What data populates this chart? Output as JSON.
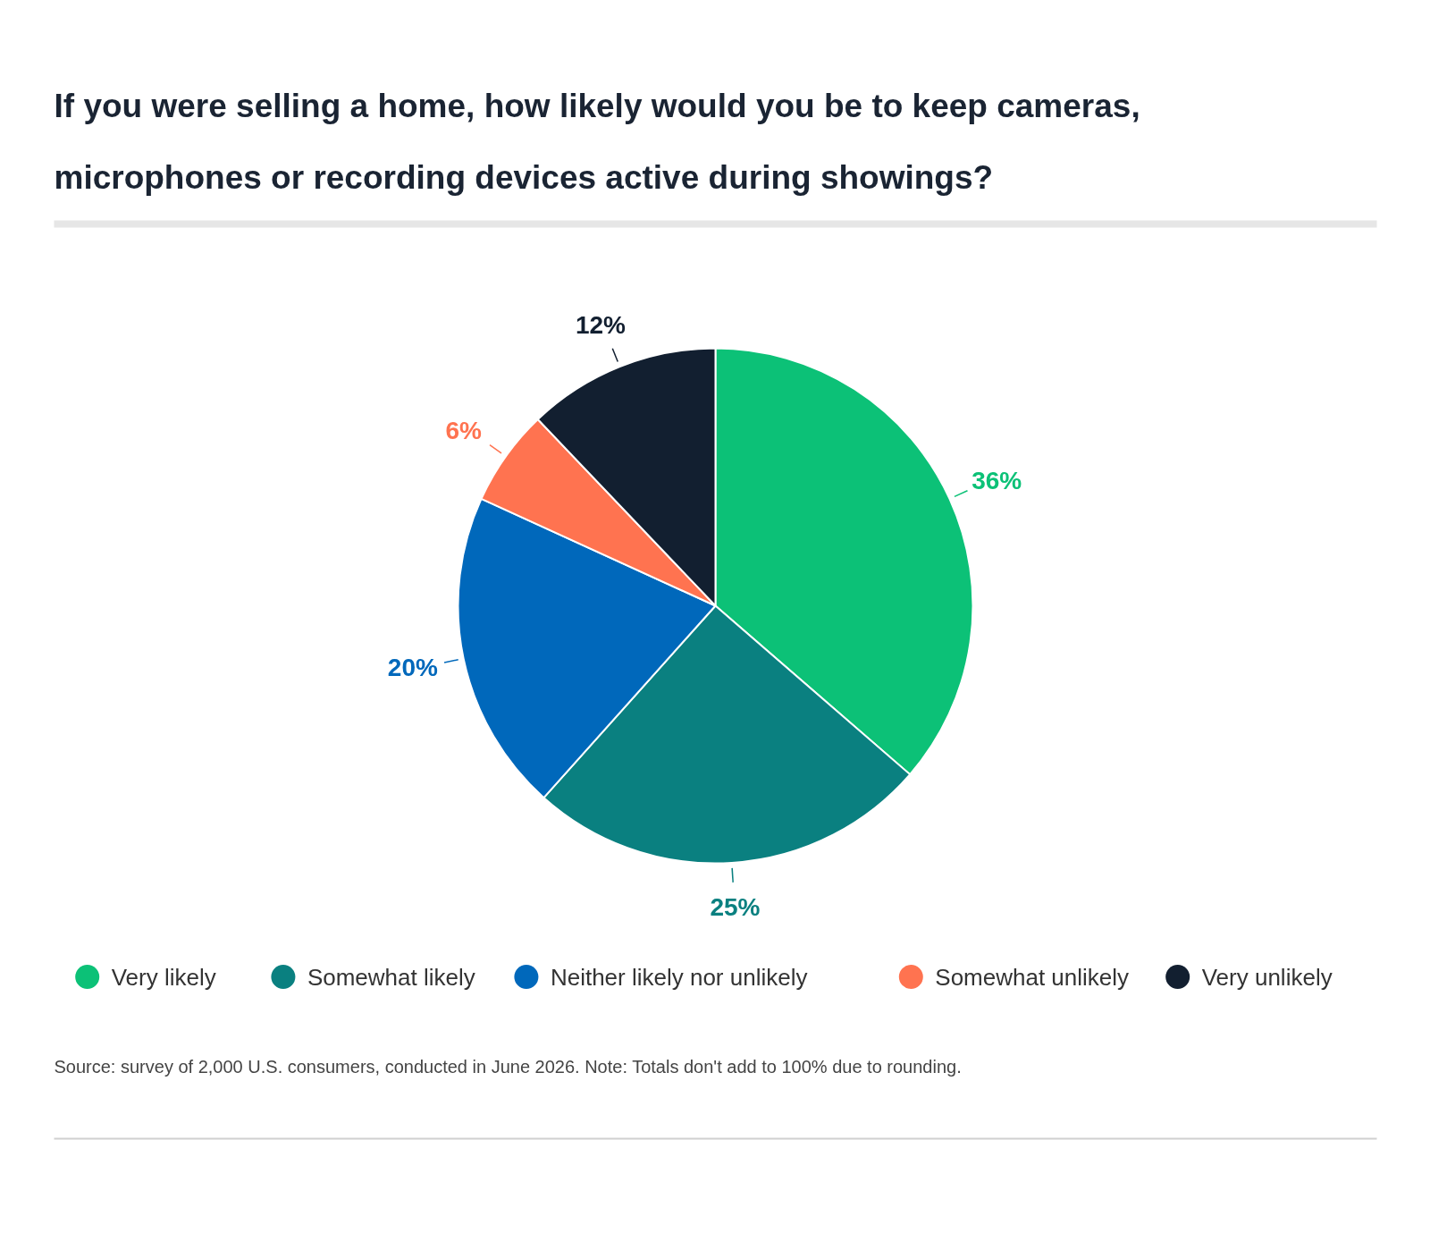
{
  "chart_data": {
    "type": "pie",
    "title": "If you were selling a home, how likely would you be to keep cameras,\nmicrophones or recording devices active during showings?",
    "categories": [
      "Very likely",
      "Somewhat likely",
      "Neither likely nor unlikely",
      "Somewhat unlikely",
      "Very unlikely"
    ],
    "values": [
      36,
      25,
      20,
      6,
      12
    ],
    "colors": [
      "#0cc177",
      "#0a8080",
      "#0068bb",
      "#ff7350",
      "#121f30"
    ],
    "value_labels": [
      "36%",
      "25%",
      "20%",
      "6%",
      "12%"
    ],
    "legend": "bottom",
    "annotations": [
      "Source: survey of 2,000 U.S. consumers, conducted in June 2026. Note: Totals don't add to 100% due to rounding."
    ]
  }
}
